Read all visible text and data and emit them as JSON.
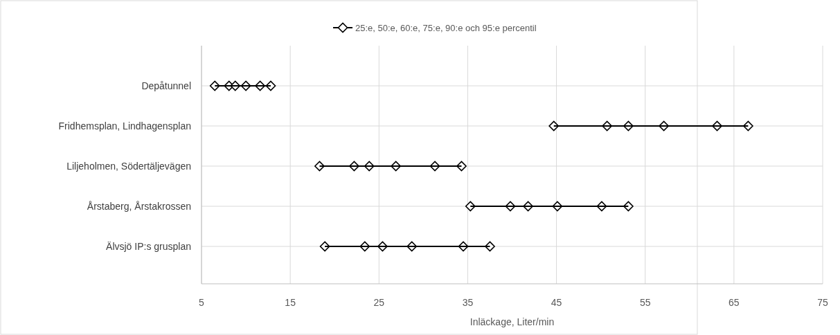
{
  "chart_data": {
    "type": "scatter",
    "orientation": "horizontal",
    "xlabel": "Inläckage, Liter/min",
    "categories": [
      "Depåtunnel",
      "Fridhemsplan, Lindhagensplan",
      "Liljeholmen, Södertäljevägen",
      "Årstaberg, Årstakrossen",
      "Älvsjö IP:s grusplan"
    ],
    "series": [
      {
        "name": "25:e, 50:e, 60:e, 75:e, 90:e och 95:e percentil",
        "type": "bar",
        "color": "#000000",
        "base": [
          6.5,
          44.7,
          18.3,
          35.3,
          18.9
        ],
        "values": [
          6.3,
          21.9,
          16.0,
          17.8,
          18.6
        ]
      },
      {
        "color": "#000000",
        "values": [
          6.5,
          44.7,
          18.3,
          35.3,
          18.9
        ]
      },
      {
        "color": "#000000",
        "values": [
          8.1,
          50.7,
          22.2,
          39.8,
          23.4
        ]
      },
      {
        "color": "#000000",
        "values": [
          8.8,
          53.1,
          23.9,
          41.8,
          25.4
        ]
      },
      {
        "color": "#000000",
        "values": [
          10.0,
          57.1,
          26.9,
          45.1,
          28.7
        ]
      },
      {
        "color": "#000000",
        "values": [
          11.6,
          63.1,
          31.3,
          50.1,
          34.5
        ]
      },
      {
        "color": "#000000",
        "values": [
          12.8,
          66.6,
          34.3,
          53.1,
          37.5
        ]
      }
    ],
    "xlim": [
      5,
      75
    ],
    "xticks": [
      5,
      15,
      25,
      35,
      45,
      55,
      65,
      75
    ],
    "grid": true,
    "legend": "top",
    "marker": "diamond"
  }
}
